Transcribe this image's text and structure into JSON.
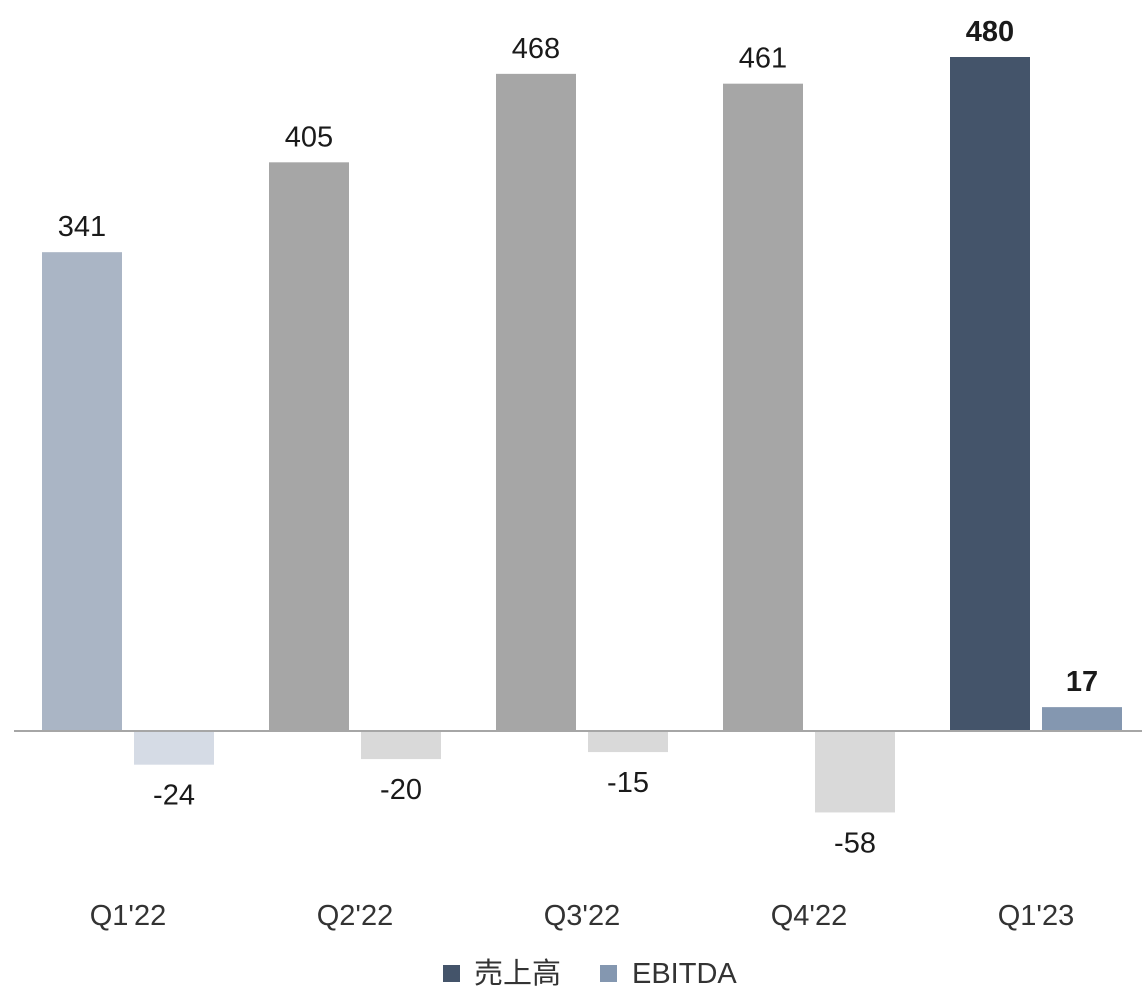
{
  "chart_data": {
    "type": "bar",
    "categories": [
      "Q1'22",
      "Q2'22",
      "Q3'22",
      "Q4'22",
      "Q1'23"
    ],
    "series": [
      {
        "name": "売上高",
        "values": [
          341,
          405,
          468,
          461,
          480
        ],
        "labels": [
          "341",
          "405",
          "468",
          "461",
          "480"
        ],
        "colors": [
          "#aab5c5",
          "#a6a6a6",
          "#a6a6a6",
          "#a6a6a6",
          "#44546a"
        ],
        "label_colors": [
          "#1a1a1a",
          "#1a1a1a",
          "#1a1a1a",
          "#1a1a1a",
          "#44546a"
        ],
        "legend_color": "#44546a"
      },
      {
        "name": "EBITDA",
        "values": [
          -24,
          -20,
          -15,
          -58,
          17
        ],
        "labels": [
          "-24",
          "-20",
          "-15",
          "-58",
          "17"
        ],
        "colors": [
          "#d5dbe5",
          "#d9d9d9",
          "#d9d9d9",
          "#d9d9d9",
          "#8497b0"
        ],
        "label_colors": [
          "#1a1a1a",
          "#1a1a1a",
          "#1a1a1a",
          "#1a1a1a",
          "#8497b0"
        ],
        "legend_color": "#8497b0"
      }
    ],
    "highlight_category": "Q1'23",
    "ylim": [
      -58,
      480
    ],
    "grid": false,
    "axis_line_color": "#a6a6a6",
    "legend_position": "bottom",
    "title": "",
    "xlabel": "",
    "ylabel": ""
  }
}
